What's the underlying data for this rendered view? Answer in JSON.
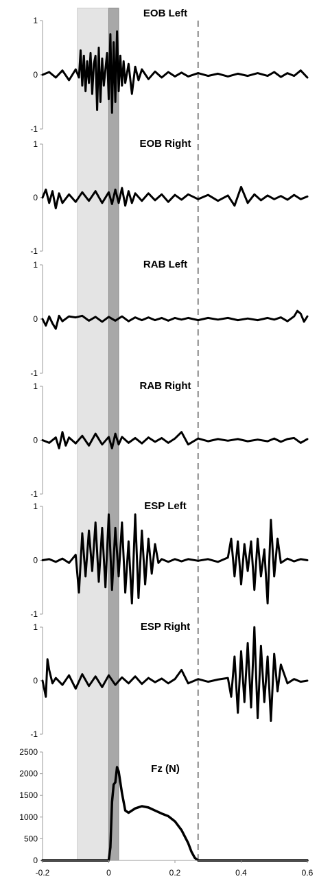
{
  "chart_data": {
    "type": "line",
    "x_range": [
      -0.2,
      0.6
    ],
    "x_ticks": [
      "-0.2",
      "0",
      "0.2",
      "0.4",
      "0.6"
    ],
    "x_tick_values": [
      -0.2,
      0,
      0.2,
      0.4,
      0.6
    ],
    "shaded_regions": [
      {
        "from": -0.095,
        "to": 0.0,
        "color": "#e4e4e4"
      },
      {
        "from": 0.0,
        "to": 0.03,
        "color": "#a8a8a8"
      }
    ],
    "dashed_line_x": 0.27,
    "line_color": "#000000",
    "panels": [
      {
        "title": "EOB Left",
        "ylim": [
          -1,
          1
        ],
        "y_ticks": [
          "1",
          "0",
          "-1"
        ],
        "y_tick_values": [
          1,
          0,
          -1
        ],
        "x": [
          -0.2,
          -0.18,
          -0.16,
          -0.14,
          -0.12,
          -0.1,
          -0.09,
          -0.085,
          -0.08,
          -0.075,
          -0.07,
          -0.065,
          -0.06,
          -0.055,
          -0.05,
          -0.045,
          -0.04,
          -0.035,
          -0.03,
          -0.025,
          -0.02,
          -0.015,
          -0.01,
          -0.005,
          0,
          0.005,
          0.01,
          0.015,
          0.02,
          0.025,
          0.03,
          0.035,
          0.04,
          0.045,
          0.05,
          0.06,
          0.07,
          0.08,
          0.09,
          0.1,
          0.12,
          0.14,
          0.16,
          0.18,
          0.2,
          0.22,
          0.24,
          0.27,
          0.3,
          0.33,
          0.36,
          0.39,
          0.42,
          0.45,
          0.48,
          0.5,
          0.52,
          0.54,
          0.56,
          0.58,
          0.6
        ],
        "y": [
          0,
          0.05,
          -0.05,
          0.08,
          -0.1,
          0.1,
          -0.05,
          0.45,
          -0.2,
          0.35,
          -0.3,
          0.25,
          -0.15,
          0.4,
          -0.35,
          0.2,
          0.35,
          -0.65,
          0.5,
          -0.5,
          0.3,
          -0.2,
          0.1,
          0.4,
          -0.45,
          0.75,
          -0.7,
          0.6,
          -0.5,
          0.8,
          -0.3,
          0.35,
          -0.2,
          0.25,
          -0.15,
          0.2,
          -0.35,
          0.15,
          -0.1,
          0.1,
          -0.08,
          0.06,
          -0.05,
          0.05,
          -0.03,
          0.04,
          -0.03,
          0.03,
          -0.02,
          0.02,
          -0.03,
          0.02,
          -0.02,
          0.03,
          -0.02,
          0.05,
          -0.04,
          0.03,
          -0.02,
          0.08,
          -0.05
        ]
      },
      {
        "title": "EOB Right",
        "ylim": [
          -1,
          1
        ],
        "y_ticks": [
          "1",
          "0",
          "-1"
        ],
        "y_tick_values": [
          1,
          0,
          -1
        ],
        "x": [
          -0.2,
          -0.19,
          -0.18,
          -0.17,
          -0.16,
          -0.15,
          -0.14,
          -0.12,
          -0.1,
          -0.08,
          -0.06,
          -0.04,
          -0.02,
          0,
          0.01,
          0.02,
          0.03,
          0.04,
          0.05,
          0.06,
          0.07,
          0.08,
          0.1,
          0.12,
          0.14,
          0.16,
          0.18,
          0.2,
          0.22,
          0.24,
          0.27,
          0.3,
          0.33,
          0.36,
          0.38,
          0.4,
          0.42,
          0.44,
          0.46,
          0.48,
          0.5,
          0.52,
          0.54,
          0.56,
          0.58,
          0.6
        ],
        "y": [
          0,
          0.15,
          -0.1,
          0.12,
          -0.2,
          0.08,
          -0.1,
          0.06,
          -0.08,
          0.1,
          -0.06,
          0.12,
          -0.1,
          0.1,
          -0.12,
          0.15,
          -0.1,
          0.18,
          -0.15,
          0.12,
          -0.1,
          0.08,
          -0.06,
          0.08,
          -0.05,
          0.06,
          -0.08,
          0.05,
          -0.04,
          0.06,
          -0.03,
          0.05,
          -0.06,
          0.04,
          -0.15,
          0.2,
          -0.1,
          0.06,
          -0.05,
          0.04,
          -0.03,
          0.03,
          -0.04,
          0.05,
          -0.03,
          0.02
        ]
      },
      {
        "title": "RAB Left",
        "ylim": [
          -1,
          1
        ],
        "y_ticks": [
          "1",
          "0",
          "-1"
        ],
        "y_tick_values": [
          1,
          0,
          -1
        ],
        "x": [
          -0.2,
          -0.19,
          -0.18,
          -0.17,
          -0.16,
          -0.15,
          -0.14,
          -0.12,
          -0.1,
          -0.08,
          -0.06,
          -0.04,
          -0.02,
          0,
          0.02,
          0.04,
          0.06,
          0.08,
          0.1,
          0.12,
          0.14,
          0.16,
          0.18,
          0.2,
          0.22,
          0.24,
          0.27,
          0.3,
          0.33,
          0.36,
          0.39,
          0.42,
          0.45,
          0.48,
          0.5,
          0.52,
          0.54,
          0.56,
          0.57,
          0.58,
          0.59,
          0.6
        ],
        "y": [
          0,
          -0.12,
          0.05,
          -0.08,
          -0.18,
          0.06,
          -0.04,
          0.05,
          0.03,
          0.06,
          -0.03,
          0.04,
          -0.05,
          0.04,
          -0.03,
          0.05,
          -0.04,
          0.03,
          -0.02,
          0.03,
          -0.02,
          0.02,
          -0.03,
          0.02,
          -0.01,
          0.02,
          -0.02,
          0.02,
          -0.01,
          0.02,
          -0.02,
          0.01,
          -0.02,
          0.02,
          -0.01,
          0.03,
          -0.04,
          0.05,
          0.15,
          0.1,
          -0.05,
          0.05
        ]
      },
      {
        "title": "RAB Right",
        "ylim": [
          -1,
          1
        ],
        "y_ticks": [
          "1",
          "0",
          "-1"
        ],
        "y_tick_values": [
          1,
          0,
          -1
        ],
        "x": [
          -0.2,
          -0.18,
          -0.16,
          -0.15,
          -0.14,
          -0.13,
          -0.12,
          -0.1,
          -0.08,
          -0.06,
          -0.04,
          -0.02,
          0,
          0.01,
          0.02,
          0.03,
          0.04,
          0.06,
          0.08,
          0.1,
          0.12,
          0.14,
          0.16,
          0.18,
          0.2,
          0.22,
          0.24,
          0.27,
          0.3,
          0.33,
          0.36,
          0.39,
          0.42,
          0.45,
          0.48,
          0.5,
          0.52,
          0.54,
          0.56,
          0.58,
          0.6
        ],
        "y": [
          0,
          -0.05,
          0.05,
          -0.15,
          0.15,
          -0.1,
          0.05,
          -0.06,
          0.08,
          -0.1,
          0.12,
          -0.08,
          0.06,
          -0.15,
          0.12,
          -0.08,
          0.06,
          -0.05,
          0.04,
          -0.06,
          0.05,
          -0.03,
          0.04,
          -0.05,
          0.03,
          0.15,
          -0.08,
          0.03,
          -0.02,
          0.02,
          -0.01,
          0.02,
          -0.02,
          0.01,
          -0.02,
          0.03,
          -0.03,
          0.02,
          0.04,
          -0.05,
          0.02
        ]
      },
      {
        "title": "ESP Left",
        "ylim": [
          -1,
          1
        ],
        "y_ticks": [
          "1",
          "0",
          "-1"
        ],
        "y_tick_values": [
          1,
          0,
          -1
        ],
        "x": [
          -0.2,
          -0.18,
          -0.16,
          -0.14,
          -0.12,
          -0.1,
          -0.09,
          -0.08,
          -0.07,
          -0.06,
          -0.05,
          -0.04,
          -0.03,
          -0.02,
          -0.01,
          0,
          0.01,
          0.02,
          0.03,
          0.04,
          0.05,
          0.06,
          0.07,
          0.08,
          0.09,
          0.1,
          0.11,
          0.12,
          0.13,
          0.14,
          0.15,
          0.16,
          0.18,
          0.2,
          0.22,
          0.24,
          0.27,
          0.3,
          0.33,
          0.36,
          0.37,
          0.38,
          0.39,
          0.4,
          0.41,
          0.42,
          0.43,
          0.44,
          0.45,
          0.46,
          0.47,
          0.48,
          0.49,
          0.5,
          0.51,
          0.52,
          0.54,
          0.56,
          0.58,
          0.6
        ],
        "y": [
          0,
          0.02,
          -0.03,
          0.03,
          -0.05,
          0.1,
          -0.6,
          0.5,
          -0.3,
          0.55,
          -0.2,
          0.7,
          -0.4,
          0.6,
          -0.5,
          0.85,
          -0.55,
          0.6,
          -0.3,
          0.7,
          -0.6,
          0.35,
          -0.8,
          0.85,
          -0.7,
          0.55,
          -0.45,
          0.4,
          -0.25,
          0.3,
          -0.05,
          0.02,
          -0.03,
          0.02,
          -0.02,
          0.02,
          -0.01,
          0.02,
          -0.03,
          0.05,
          0.4,
          -0.3,
          0.35,
          -0.45,
          0.3,
          -0.2,
          0.35,
          -0.55,
          0.4,
          -0.3,
          0.2,
          -0.8,
          0.75,
          -0.3,
          0.4,
          -0.05,
          0.03,
          -0.02,
          0.02,
          0
        ]
      },
      {
        "title": "ESP Right",
        "ylim": [
          -1,
          1
        ],
        "y_ticks": [
          "1",
          "0",
          "-1"
        ],
        "y_tick_values": [
          1,
          0,
          -1
        ],
        "x": [
          -0.2,
          -0.19,
          -0.185,
          -0.18,
          -0.17,
          -0.16,
          -0.14,
          -0.12,
          -0.1,
          -0.08,
          -0.06,
          -0.04,
          -0.02,
          0,
          0.02,
          0.04,
          0.06,
          0.08,
          0.1,
          0.12,
          0.14,
          0.16,
          0.18,
          0.2,
          0.22,
          0.24,
          0.27,
          0.3,
          0.33,
          0.36,
          0.37,
          0.38,
          0.39,
          0.4,
          0.41,
          0.42,
          0.43,
          0.44,
          0.45,
          0.46,
          0.47,
          0.48,
          0.49,
          0.5,
          0.51,
          0.52,
          0.54,
          0.56,
          0.58,
          0.6
        ],
        "y": [
          0,
          -0.3,
          0.4,
          0.2,
          -0.05,
          0.05,
          -0.08,
          0.1,
          -0.15,
          0.12,
          -0.1,
          0.08,
          -0.12,
          0.1,
          -0.08,
          0.06,
          -0.05,
          0.08,
          -0.06,
          0.05,
          -0.03,
          0.04,
          -0.05,
          0.03,
          0.2,
          -0.05,
          0.03,
          -0.02,
          0.02,
          0.05,
          -0.3,
          0.45,
          -0.6,
          0.55,
          -0.4,
          0.7,
          -0.5,
          1.0,
          -0.7,
          0.65,
          -0.4,
          0.45,
          -0.75,
          0.5,
          -0.2,
          0.3,
          -0.05,
          0.03,
          -0.02,
          0
        ]
      },
      {
        "title": "Fz (N)",
        "ylim": [
          0,
          2500
        ],
        "y_ticks": [
          "2500",
          "2000",
          "1500",
          "1000",
          "500",
          "0"
        ],
        "y_tick_values": [
          2500,
          2000,
          1500,
          1000,
          500,
          0
        ],
        "x": [
          -0.2,
          -0.1,
          0,
          0.005,
          0.01,
          0.015,
          0.02,
          0.025,
          0.03,
          0.035,
          0.04,
          0.05,
          0.06,
          0.08,
          0.1,
          0.12,
          0.14,
          0.16,
          0.18,
          0.2,
          0.22,
          0.24,
          0.25,
          0.26,
          0.27,
          0.3,
          0.4,
          0.5,
          0.6
        ],
        "y": [
          0,
          0,
          0,
          300,
          1350,
          1750,
          1800,
          2150,
          2050,
          1800,
          1550,
          1150,
          1100,
          1200,
          1250,
          1220,
          1150,
          1080,
          1020,
          900,
          700,
          400,
          200,
          60,
          0,
          0,
          0,
          0,
          0
        ]
      }
    ]
  }
}
